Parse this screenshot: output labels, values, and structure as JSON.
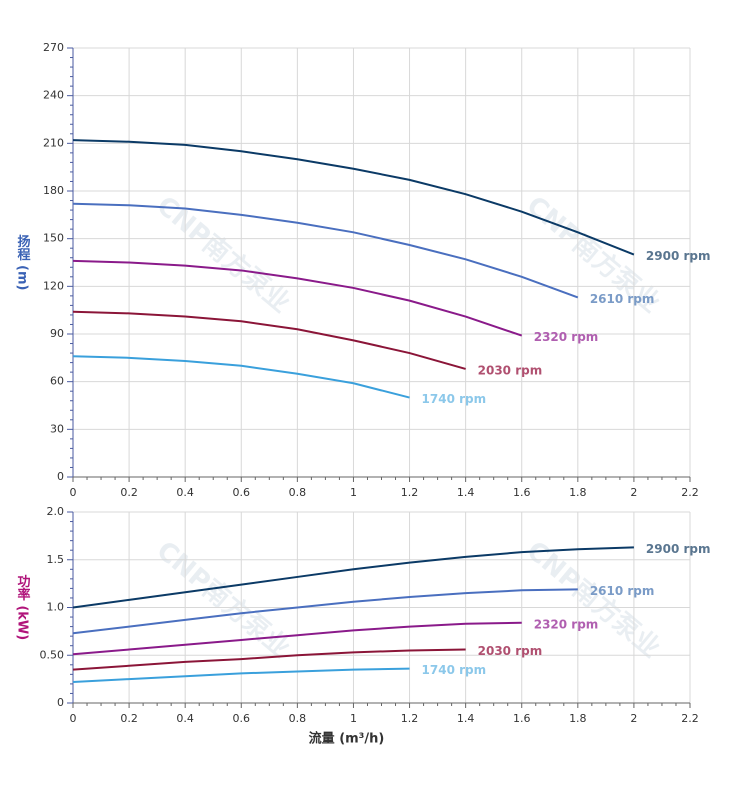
{
  "chart_data": [
    {
      "type": "line",
      "y_label": "扬程 (m)",
      "y_label_color": "#3a62b5",
      "xlim": [
        0,
        2.2
      ],
      "xticks": [
        0,
        0.2,
        0.4,
        0.6,
        0.8,
        1,
        1.2,
        1.4,
        1.6,
        1.8,
        2,
        2.2
      ],
      "ylim": [
        0,
        270
      ],
      "yticks": [
        0,
        30,
        60,
        90,
        120,
        150,
        180,
        210,
        240,
        270
      ],
      "grid": true,
      "watermark": "CNP南方泵业",
      "series": [
        {
          "name": "2900 rpm",
          "color": "#0b3a66",
          "label_color": "#5a7690",
          "x": [
            0,
            0.2,
            0.4,
            0.6,
            0.8,
            1,
            1.2,
            1.4,
            1.6,
            1.8,
            2
          ],
          "values": [
            212,
            211,
            209,
            205,
            200,
            194,
            187,
            178,
            167,
            154,
            140
          ]
        },
        {
          "name": "2610 rpm",
          "color": "#4a6fbf",
          "label_color": "#7a9bc7",
          "x": [
            0,
            0.2,
            0.4,
            0.6,
            0.8,
            1,
            1.2,
            1.4,
            1.6,
            1.8
          ],
          "values": [
            172,
            171,
            169,
            165,
            160,
            154,
            146,
            137,
            126,
            113
          ]
        },
        {
          "name": "2320 rpm",
          "color": "#8a1a8a",
          "label_color": "#b05fb0",
          "x": [
            0,
            0.2,
            0.4,
            0.6,
            0.8,
            1,
            1.2,
            1.4,
            1.6
          ],
          "values": [
            136,
            135,
            133,
            130,
            125,
            119,
            111,
            101,
            89
          ]
        },
        {
          "name": "2030 rpm",
          "color": "#8b1538",
          "label_color": "#b05070",
          "x": [
            0,
            0.2,
            0.4,
            0.6,
            0.8,
            1,
            1.2,
            1.4
          ],
          "values": [
            104,
            103,
            101,
            98,
            93,
            86,
            78,
            68
          ]
        },
        {
          "name": "1740 rpm",
          "color": "#3aa0dc",
          "label_color": "#8cc8ea",
          "x": [
            0,
            0.2,
            0.4,
            0.6,
            0.8,
            1,
            1.2
          ],
          "values": [
            76,
            75,
            73,
            70,
            65,
            59,
            50
          ]
        }
      ]
    },
    {
      "type": "line",
      "y_label": "功率 (kW)",
      "y_label_color": "#b0147a",
      "x_label": "流量 (m³/h)",
      "xlim": [
        0,
        2.2
      ],
      "xticks": [
        0,
        0.2,
        0.4,
        0.6,
        0.8,
        1,
        1.2,
        1.4,
        1.6,
        1.8,
        2,
        2.2
      ],
      "ylim": [
        0,
        2
      ],
      "yticks": [
        0,
        {
          "value": 0.5,
          "label": "0.50"
        },
        {
          "value": 1,
          "label": "1.0"
        },
        1.5,
        {
          "value": 2,
          "label": "2.0"
        }
      ],
      "grid": true,
      "watermark": "CNP南方泵业",
      "series": [
        {
          "name": "2900 rpm",
          "color": "#0b3a66",
          "label_color": "#5a7690",
          "x": [
            0,
            0.2,
            0.4,
            0.6,
            0.8,
            1,
            1.2,
            1.4,
            1.6,
            1.8,
            2
          ],
          "values": [
            1.0,
            1.08,
            1.16,
            1.24,
            1.32,
            1.4,
            1.47,
            1.53,
            1.58,
            1.61,
            1.63
          ]
        },
        {
          "name": "2610 rpm",
          "color": "#4a6fbf",
          "label_color": "#7a9bc7",
          "x": [
            0,
            0.2,
            0.4,
            0.6,
            0.8,
            1,
            1.2,
            1.4,
            1.6,
            1.8
          ],
          "values": [
            0.73,
            0.8,
            0.87,
            0.94,
            1.0,
            1.06,
            1.11,
            1.15,
            1.18,
            1.19
          ]
        },
        {
          "name": "2320 rpm",
          "color": "#8a1a8a",
          "label_color": "#b05fb0",
          "x": [
            0,
            0.2,
            0.4,
            0.6,
            0.8,
            1,
            1.2,
            1.4,
            1.6
          ],
          "values": [
            0.51,
            0.56,
            0.61,
            0.66,
            0.71,
            0.76,
            0.8,
            0.83,
            0.84
          ]
        },
        {
          "name": "2030 rpm",
          "color": "#8b1538",
          "label_color": "#b05070",
          "x": [
            0,
            0.2,
            0.4,
            0.6,
            0.8,
            1,
            1.2,
            1.4
          ],
          "values": [
            0.35,
            0.39,
            0.43,
            0.46,
            0.5,
            0.53,
            0.55,
            0.56
          ]
        },
        {
          "name": "1740 rpm",
          "color": "#3aa0dc",
          "label_color": "#8cc8ea",
          "x": [
            0,
            0.2,
            0.4,
            0.6,
            0.8,
            1,
            1.2
          ],
          "values": [
            0.22,
            0.25,
            0.28,
            0.31,
            0.33,
            0.35,
            0.36
          ]
        }
      ]
    }
  ]
}
